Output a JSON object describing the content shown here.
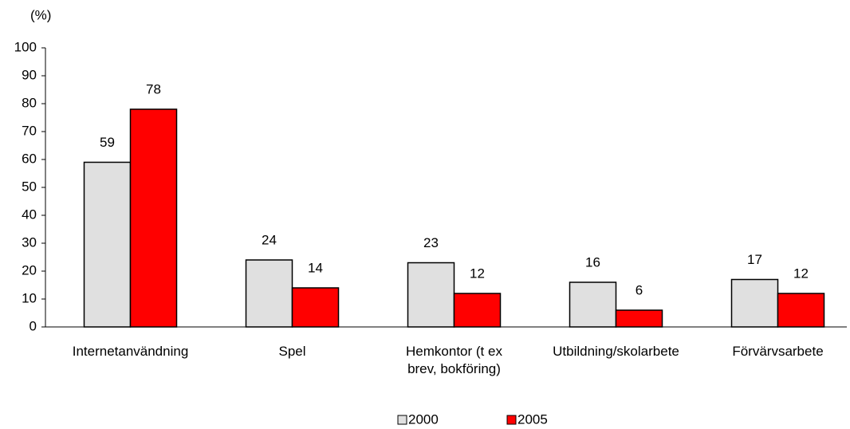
{
  "chart_data": {
    "type": "bar",
    "y_label": "(%)",
    "categories": [
      "Internetanvändning",
      "Spel",
      "Hemkontor (t ex brev, bokföring)",
      "Utbildning/skolarbete",
      "Förvärvsarbete"
    ],
    "series": [
      {
        "name": "2000",
        "color": "#e0e0e0",
        "values": [
          59,
          24,
          23,
          16,
          17
        ]
      },
      {
        "name": "2005",
        "color": "#ff0000",
        "values": [
          78,
          14,
          12,
          6,
          12
        ]
      }
    ],
    "ylim": [
      0,
      100
    ],
    "yticks": [
      0,
      10,
      20,
      30,
      40,
      50,
      60,
      70,
      80,
      90,
      100
    ],
    "legend": "bottom"
  }
}
